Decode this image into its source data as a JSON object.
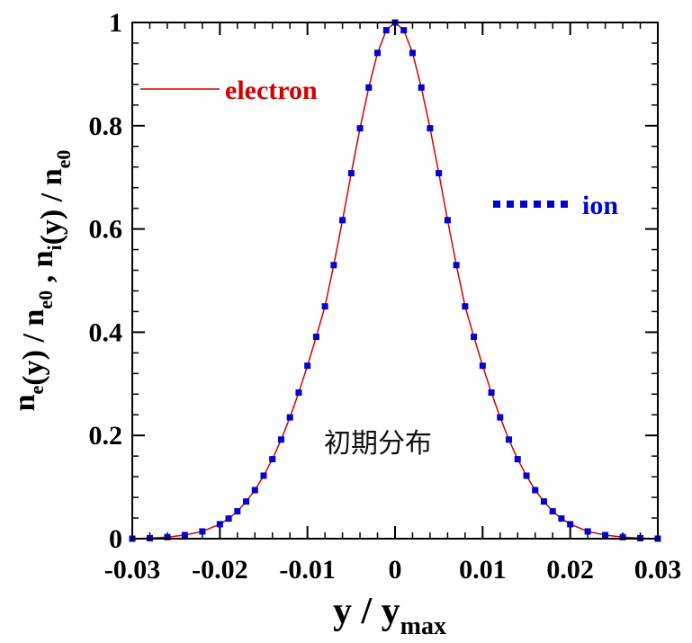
{
  "chart_data": {
    "type": "line",
    "xlabel": {
      "main": "y / y",
      "sub": "max"
    },
    "ylabel": {
      "parts": [
        {
          "t": "n",
          "s": "e"
        },
        {
          "t": "(y) / n",
          "s": "e0"
        },
        {
          "t": " , n",
          "s": "i"
        },
        {
          "t": "(y) / n",
          "s": "e0"
        }
      ]
    },
    "xlim": [
      -0.03,
      0.03
    ],
    "ylim": [
      0,
      1
    ],
    "x_ticks": [
      -0.03,
      -0.02,
      -0.01,
      0,
      0.01,
      0.02,
      0.03
    ],
    "x_tick_labels": [
      "-0.03",
      "-0.02",
      "-0.01",
      "0",
      "0.01",
      "0.02",
      "0.03"
    ],
    "y_ticks": [
      0,
      0.2,
      0.4,
      0.6,
      0.8,
      1
    ],
    "y_tick_labels": [
      "0",
      "0.2",
      "0.4",
      "0.6",
      "0.8",
      "1"
    ],
    "grid": false,
    "annotation": "初期分布",
    "series": [
      {
        "name": "electron",
        "style": "solid",
        "color": "#d40000",
        "x": [
          -0.03,
          -0.028,
          -0.026,
          -0.024,
          -0.022,
          -0.02,
          -0.019,
          -0.018,
          -0.017,
          -0.016,
          -0.015,
          -0.014,
          -0.013,
          -0.012,
          -0.011,
          -0.01,
          -0.009,
          -0.008,
          -0.007,
          -0.006,
          -0.005,
          -0.004,
          -0.003,
          -0.002,
          -0.001,
          0,
          0.001,
          0.002,
          0.003,
          0.004,
          0.005,
          0.006,
          0.007,
          0.008,
          0.009,
          0.01,
          0.011,
          0.012,
          0.013,
          0.014,
          0.015,
          0.016,
          0.017,
          0.018,
          0.019,
          0.02,
          0.022,
          0.024,
          0.026,
          0.028,
          0.03
        ],
        "y": [
          0.0,
          0.001,
          0.003,
          0.007,
          0.014,
          0.028,
          0.039,
          0.053,
          0.072,
          0.094,
          0.122,
          0.154,
          0.192,
          0.235,
          0.283,
          0.335,
          0.391,
          0.45,
          0.53,
          0.617,
          0.708,
          0.795,
          0.874,
          0.941,
          0.985,
          1.0,
          0.985,
          0.941,
          0.874,
          0.795,
          0.708,
          0.617,
          0.53,
          0.45,
          0.391,
          0.335,
          0.283,
          0.235,
          0.192,
          0.154,
          0.122,
          0.094,
          0.072,
          0.053,
          0.039,
          0.028,
          0.014,
          0.007,
          0.003,
          0.001,
          0.0
        ]
      },
      {
        "name": "ion",
        "style": "dotted",
        "color": "#0000d0",
        "x": [
          -0.03,
          -0.028,
          -0.026,
          -0.024,
          -0.022,
          -0.02,
          -0.019,
          -0.018,
          -0.017,
          -0.016,
          -0.015,
          -0.014,
          -0.013,
          -0.012,
          -0.011,
          -0.01,
          -0.009,
          -0.008,
          -0.007,
          -0.006,
          -0.005,
          -0.004,
          -0.003,
          -0.002,
          -0.001,
          0,
          0.001,
          0.002,
          0.003,
          0.004,
          0.005,
          0.006,
          0.007,
          0.008,
          0.009,
          0.01,
          0.011,
          0.012,
          0.013,
          0.014,
          0.015,
          0.016,
          0.017,
          0.018,
          0.019,
          0.02,
          0.022,
          0.024,
          0.026,
          0.028,
          0.03
        ],
        "y": [
          0.0,
          0.001,
          0.003,
          0.007,
          0.014,
          0.028,
          0.039,
          0.053,
          0.072,
          0.094,
          0.122,
          0.154,
          0.192,
          0.235,
          0.283,
          0.335,
          0.391,
          0.45,
          0.53,
          0.617,
          0.708,
          0.795,
          0.874,
          0.941,
          0.985,
          1.0,
          0.985,
          0.941,
          0.874,
          0.795,
          0.708,
          0.617,
          0.53,
          0.45,
          0.391,
          0.335,
          0.283,
          0.235,
          0.192,
          0.154,
          0.122,
          0.094,
          0.072,
          0.053,
          0.039,
          0.028,
          0.014,
          0.007,
          0.003,
          0.001,
          0.0
        ]
      }
    ],
    "legend": [
      {
        "series": 0,
        "label": "electron"
      },
      {
        "series": 1,
        "label": "ion"
      }
    ]
  }
}
